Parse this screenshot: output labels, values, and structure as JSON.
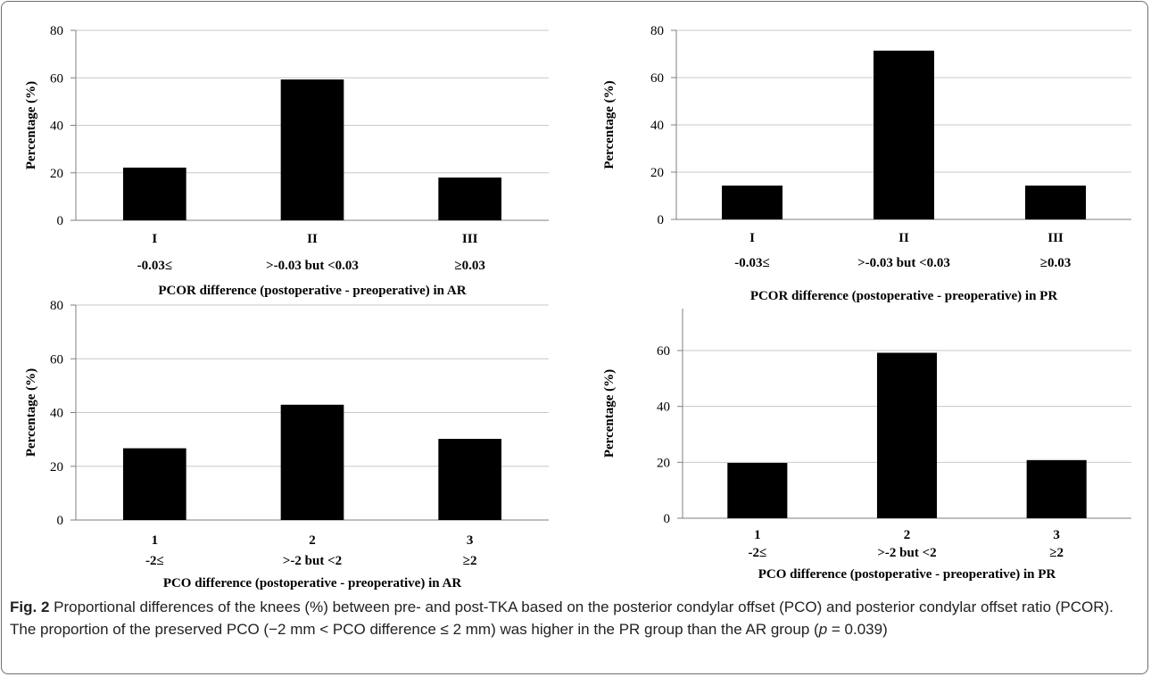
{
  "chart_data": [
    {
      "type": "bar",
      "panel": "top-left",
      "categories": [
        "I",
        "II",
        "III"
      ],
      "category_sublabels": [
        "-0.03≤",
        ">-0.03 but <0.03",
        "≥0.03"
      ],
      "values": [
        22.2,
        59.3,
        18.0
      ],
      "xlabel": "PCOR difference (postoperative - preoperative) in AR",
      "ylabel": "Percentage (%)",
      "ylim": [
        0,
        80
      ],
      "yticks": [
        0,
        20,
        40,
        60,
        80
      ],
      "grid": true
    },
    {
      "type": "bar",
      "panel": "top-right",
      "categories": [
        "I",
        "II",
        "III"
      ],
      "category_sublabels": [
        "-0.03≤",
        ">-0.03 but <0.03",
        "≥0.03"
      ],
      "values": [
        14.3,
        71.4,
        14.3
      ],
      "xlabel": "PCOR difference (postoperative - preoperative) in PR",
      "ylabel": "Percentage (%)",
      "ylim": [
        0,
        80
      ],
      "yticks": [
        0,
        20,
        40,
        60,
        80
      ],
      "grid": true
    },
    {
      "type": "bar",
      "panel": "bottom-left",
      "categories": [
        "1",
        "2",
        "3"
      ],
      "category_sublabels": [
        "-2≤",
        ">-2 but <2",
        "≥2"
      ],
      "values": [
        26.7,
        42.9,
        30.2
      ],
      "xlabel": "PCO difference (postoperative - preoperative) in AR",
      "ylabel": "Percentage (%)",
      "ylim": [
        0,
        80
      ],
      "yticks": [
        0,
        20,
        40,
        60,
        80
      ],
      "grid": true
    },
    {
      "type": "bar",
      "panel": "bottom-right",
      "categories": [
        "1",
        "2",
        "3"
      ],
      "category_sublabels": [
        "-2≤",
        ">-2 but <2",
        "≥2"
      ],
      "values": [
        19.8,
        59.2,
        20.8
      ],
      "xlabel": "PCO difference (postoperative - preoperative) in PR",
      "ylabel": "Percentage (%)",
      "ylim": [
        0,
        75
      ],
      "yticks": [
        0,
        20,
        40,
        60
      ],
      "grid": true
    }
  ],
  "caption": {
    "label": "Fig. 2",
    "text_before_p": " Proportional differences of the knees (%) between pre- and post-TKA based on the posterior condylar offset (PCO) and posterior condylar offset ratio (PCOR). The proportion of the preserved PCO (−2 mm < PCO difference ≤ 2 mm) was higher in the PR group than the AR group (",
    "p_symbol": "p",
    "text_after_p": " = 0.039)"
  },
  "colors": {
    "bar": "#000000",
    "grid": "#c8c8c8",
    "axis": "#7f7f7f",
    "frame": "#6e6e6e"
  }
}
